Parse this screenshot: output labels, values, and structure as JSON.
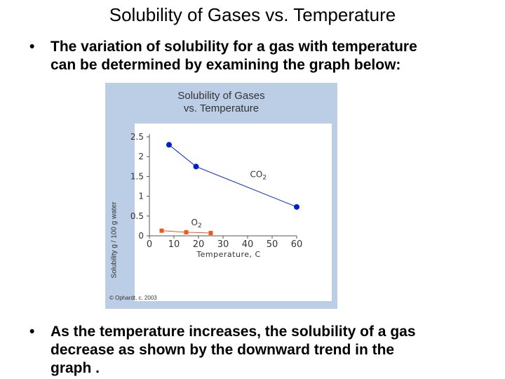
{
  "slide": {
    "title": "Solubility of Gases vs. Temperature",
    "bullet_glyph": "•",
    "bullet1_lines": [
      "The variation of solubility for a gas with temperature",
      "can be determined by examining the graph below:"
    ],
    "bullet2_lines": [
      "As the temperature increases, the solubility of a gas",
      "decrease as shown by the downward trend in the",
      "graph ."
    ]
  },
  "chart_data": {
    "type": "line",
    "title_lines": [
      "Solubility of Gases",
      "vs. Temperature"
    ],
    "xlabel": "Temperature, C",
    "ylabel": "Solubility g / 100 g water",
    "xlim": [
      0,
      60
    ],
    "ylim": [
      0,
      2.5
    ],
    "x_ticks": [
      "0",
      "10",
      "20",
      "30",
      "40",
      "50",
      "60"
    ],
    "y_ticks": [
      "0",
      "0.5",
      "1",
      "1.5",
      "2",
      "2.5"
    ],
    "grid": false,
    "series": [
      {
        "name": "CO2",
        "label_main": "CO",
        "label_sub": "2",
        "color": "#0022cc",
        "marker": "circle",
        "x": [
          8,
          19,
          60
        ],
        "y": [
          2.3,
          1.75,
          0.73
        ],
        "label_at": [
          41,
          1.48
        ]
      },
      {
        "name": "O2",
        "label_main": "O",
        "label_sub": "2",
        "color": "#e85a1e",
        "marker": "square",
        "x": [
          5,
          15,
          25
        ],
        "y": [
          0.13,
          0.09,
          0.07
        ],
        "label_at": [
          17,
          0.27
        ]
      }
    ],
    "copyright": "© Ophardt, c. 2003"
  }
}
